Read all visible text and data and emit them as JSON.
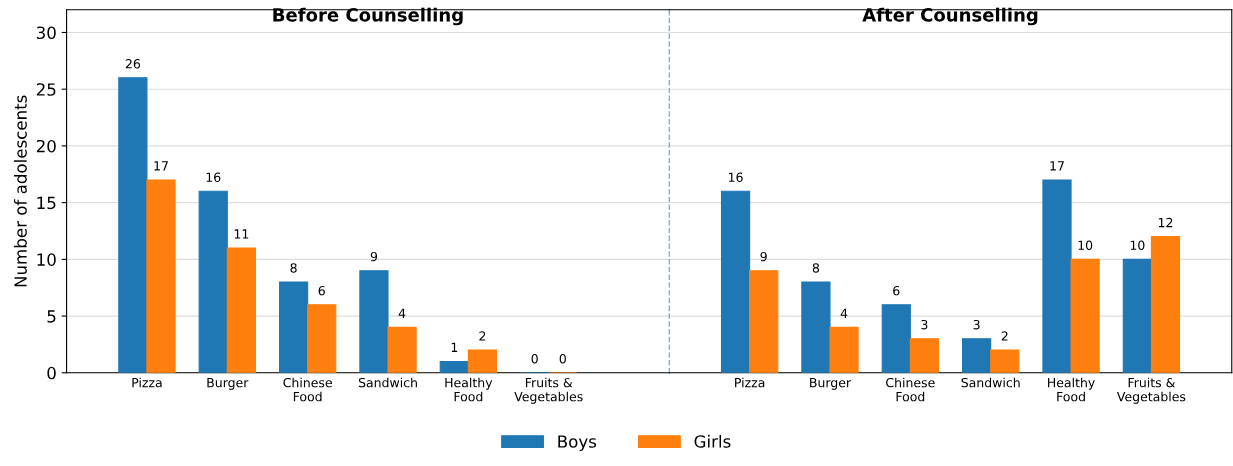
{
  "chart_data": [
    {
      "type": "bar",
      "title": "Before Counselling",
      "ylabel": "Number of adolescents",
      "categories": [
        "Pizza",
        "Burger",
        "Chinese\nFood",
        "Sandwich",
        "Healthy\nFood",
        "Fruits &\nVegetables"
      ],
      "series": [
        {
          "name": "Boys",
          "color": "#1f77b4",
          "values": [
            26,
            16,
            8,
            9,
            1,
            0
          ]
        },
        {
          "name": "Girls",
          "color": "#ff7f0e",
          "values": [
            17,
            11,
            6,
            4,
            2,
            0
          ]
        }
      ],
      "ylim": [
        0,
        32
      ],
      "yticks": [
        0,
        5,
        10,
        15,
        20,
        25,
        30
      ],
      "grid": "y",
      "data_labels": true,
      "legend": "bottom"
    },
    {
      "type": "bar",
      "title": "After Counselling",
      "categories": [
        "Pizza",
        "Burger",
        "Chinese\nFood",
        "Sandwich",
        "Healthy\nFood",
        "Fruits &\nVegetables"
      ],
      "series": [
        {
          "color": "#1f77b4",
          "values": [
            16,
            8,
            6,
            3,
            17,
            10
          ]
        },
        {
          "color": "#ff7f0e",
          "values": [
            9,
            4,
            3,
            2,
            10,
            12
          ]
        }
      ],
      "ylim": [
        0,
        32
      ],
      "yticks": [
        0,
        5,
        10,
        15,
        20,
        25,
        30
      ],
      "grid": "y",
      "data_labels": true,
      "tick_labels": "x"
    }
  ]
}
